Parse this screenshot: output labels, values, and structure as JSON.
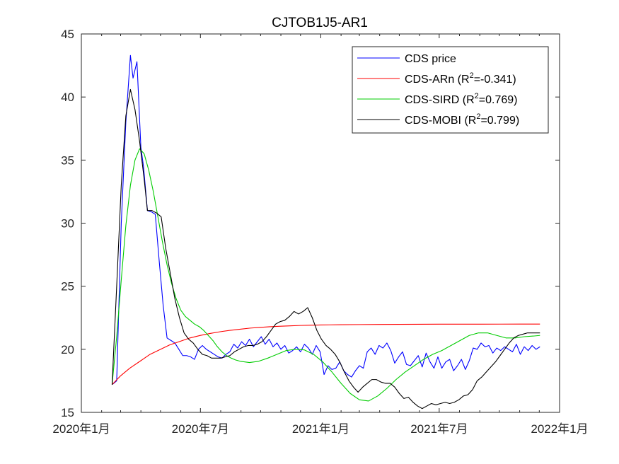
{
  "chart_data": {
    "type": "line",
    "title": "CJTOB1J5-AR1",
    "xlabel": "",
    "ylabel": "",
    "xlim": [
      "2020-01-01",
      "2022-01-01"
    ],
    "ylim": [
      15,
      45
    ],
    "yticks": [
      15,
      20,
      25,
      30,
      35,
      40,
      45
    ],
    "xticks": [
      {
        "date": "2020-01-01",
        "label": "2020年1月"
      },
      {
        "date": "2020-07-01",
        "label": "2020年7月"
      },
      {
        "date": "2021-01-01",
        "label": "2021年1月"
      },
      {
        "date": "2021-07-01",
        "label": "2021年7月"
      },
      {
        "date": "2022-01-01",
        "label": "2022年1月"
      }
    ],
    "grid": false,
    "legend_position": "top-right",
    "series": [
      {
        "name": "CDS price",
        "legend_main": "CDS price",
        "legend_sup": "",
        "legend_tail": "",
        "color": "#0000ff",
        "x": [
          "2020-02-17",
          "2020-02-24",
          "2020-03-02",
          "2020-03-09",
          "2020-03-16",
          "2020-03-20",
          "2020-03-26",
          "2020-04-01",
          "2020-04-05",
          "2020-04-11",
          "2020-04-17",
          "2020-04-23",
          "2020-04-29",
          "2020-05-05",
          "2020-05-11",
          "2020-05-17",
          "2020-05-23",
          "2020-05-29",
          "2020-06-04",
          "2020-06-10",
          "2020-06-16",
          "2020-06-22",
          "2020-06-28",
          "2020-07-04",
          "2020-07-10",
          "2020-07-16",
          "2020-07-22",
          "2020-07-28",
          "2020-08-03",
          "2020-08-09",
          "2020-08-15",
          "2020-08-21",
          "2020-08-27",
          "2020-09-02",
          "2020-09-08",
          "2020-09-14",
          "2020-09-20",
          "2020-09-26",
          "2020-10-02",
          "2020-10-08",
          "2020-10-14",
          "2020-10-20",
          "2020-10-26",
          "2020-11-01",
          "2020-11-07",
          "2020-11-13",
          "2020-11-19",
          "2020-11-25",
          "2020-12-01",
          "2020-12-07",
          "2020-12-13",
          "2020-12-19",
          "2020-12-25",
          "2020-12-31",
          "2021-01-06",
          "2021-01-12",
          "2021-01-18",
          "2021-01-24",
          "2021-01-30",
          "2021-02-05",
          "2021-02-11",
          "2021-02-17",
          "2021-02-23",
          "2021-03-01",
          "2021-03-07",
          "2021-03-13",
          "2021-03-19",
          "2021-03-25",
          "2021-03-31",
          "2021-04-06",
          "2021-04-12",
          "2021-04-18",
          "2021-04-24",
          "2021-04-30",
          "2021-05-06",
          "2021-05-12",
          "2021-05-18",
          "2021-05-24",
          "2021-05-30",
          "2021-06-05",
          "2021-06-11",
          "2021-06-17",
          "2021-06-23",
          "2021-06-29",
          "2021-07-05",
          "2021-07-11",
          "2021-07-17",
          "2021-07-23",
          "2021-07-29",
          "2021-08-04",
          "2021-08-10",
          "2021-08-16",
          "2021-08-22",
          "2021-08-28",
          "2021-09-03",
          "2021-09-09",
          "2021-09-15",
          "2021-09-21",
          "2021-09-27",
          "2021-10-03",
          "2021-10-09",
          "2021-10-15",
          "2021-10-21",
          "2021-10-27",
          "2021-11-02",
          "2021-11-08",
          "2021-11-14",
          "2021-11-20",
          "2021-11-26",
          "2021-12-02"
        ],
        "y": [
          17.2,
          17.5,
          30.0,
          38.0,
          43.3,
          41.5,
          42.8,
          36.0,
          34.5,
          31.0,
          30.9,
          30.7,
          27.0,
          23.5,
          20.9,
          20.7,
          20.5,
          20.0,
          19.5,
          19.5,
          19.4,
          19.2,
          20.0,
          20.3,
          20.0,
          19.8,
          19.6,
          19.4,
          19.3,
          19.6,
          19.8,
          20.4,
          20.1,
          20.6,
          20.3,
          20.8,
          20.2,
          20.6,
          21.0,
          20.4,
          20.8,
          20.2,
          20.5,
          20.0,
          20.3,
          19.7,
          19.9,
          20.2,
          19.8,
          20.4,
          20.1,
          19.6,
          20.3,
          19.8,
          18.0,
          18.7,
          18.4,
          18.5,
          19.0,
          18.3,
          18.0,
          17.8,
          18.3,
          18.7,
          18.5,
          19.8,
          20.1,
          19.6,
          20.3,
          20.1,
          20.5,
          19.9,
          18.9,
          19.4,
          19.8,
          18.8,
          18.7,
          19.1,
          19.5,
          18.6,
          19.7,
          19.0,
          18.5,
          19.4,
          18.5,
          19.0,
          19.2,
          18.3,
          18.7,
          19.2,
          18.4,
          19.1,
          20.1,
          20.0,
          20.5,
          20.2,
          20.3,
          19.7,
          20.1,
          19.9,
          20.2,
          20.0,
          19.8,
          20.4,
          19.6,
          20.2,
          19.9,
          20.3,
          20.0,
          20.2
        ],
        "x_note": ""
      },
      {
        "name": "CDS-ARn",
        "legend_main": "CDS-ARn   (R",
        "legend_sup": "2",
        "legend_tail": "=-0.341)",
        "color": "#ff0000",
        "x": [
          "2020-02-17",
          "2020-03-01",
          "2020-03-15",
          "2020-04-01",
          "2020-04-15",
          "2020-05-01",
          "2020-05-15",
          "2020-06-01",
          "2020-06-15",
          "2020-07-01",
          "2020-07-15",
          "2020-08-01",
          "2020-08-15",
          "2020-09-01",
          "2020-09-15",
          "2020-10-01",
          "2020-10-15",
          "2020-11-01",
          "2020-11-15",
          "2020-12-01",
          "2020-12-15",
          "2021-01-01",
          "2021-01-15",
          "2021-02-01",
          "2021-03-01",
          "2021-04-01",
          "2021-05-01",
          "2021-06-01",
          "2021-07-01",
          "2021-08-01",
          "2021-09-01",
          "2021-10-01",
          "2021-11-01",
          "2021-12-02"
        ],
        "y": [
          17.2,
          17.9,
          18.5,
          19.1,
          19.6,
          20.0,
          20.35,
          20.65,
          20.9,
          21.1,
          21.25,
          21.4,
          21.5,
          21.6,
          21.68,
          21.74,
          21.79,
          21.83,
          21.86,
          21.89,
          21.91,
          21.93,
          21.94,
          21.95,
          21.96,
          21.97,
          21.98,
          21.985,
          21.99,
          21.99,
          21.99,
          21.995,
          22.0,
          22.0
        ]
      },
      {
        "name": "CDS-SIRD",
        "legend_main": "CDS-SIRD (R",
        "legend_sup": "2",
        "legend_tail": "=0.769)",
        "color": "#00cc00",
        "x": [
          "2020-02-17",
          "2020-02-24",
          "2020-03-02",
          "2020-03-09",
          "2020-03-16",
          "2020-03-23",
          "2020-03-30",
          "2020-04-06",
          "2020-04-13",
          "2020-04-20",
          "2020-04-27",
          "2020-05-04",
          "2020-05-11",
          "2020-05-18",
          "2020-05-25",
          "2020-06-01",
          "2020-06-08",
          "2020-06-15",
          "2020-06-22",
          "2020-06-29",
          "2020-07-06",
          "2020-07-13",
          "2020-07-20",
          "2020-07-27",
          "2020-08-03",
          "2020-08-10",
          "2020-08-17",
          "2020-08-24",
          "2020-08-31",
          "2020-09-14",
          "2020-09-28",
          "2020-10-12",
          "2020-10-26",
          "2020-11-09",
          "2020-11-23",
          "2020-12-07",
          "2020-12-21",
          "2021-01-04",
          "2021-01-18",
          "2021-02-01",
          "2021-02-15",
          "2021-03-01",
          "2021-03-15",
          "2021-03-29",
          "2021-04-12",
          "2021-04-26",
          "2021-05-10",
          "2021-05-24",
          "2021-06-07",
          "2021-06-21",
          "2021-07-05",
          "2021-07-19",
          "2021-08-02",
          "2021-08-16",
          "2021-08-30",
          "2021-09-13",
          "2021-09-27",
          "2021-10-11",
          "2021-10-25",
          "2021-11-08",
          "2021-11-22",
          "2021-12-02"
        ],
        "y": [
          17.2,
          21.0,
          25.5,
          29.8,
          33.0,
          35.0,
          35.9,
          35.5,
          34.2,
          32.5,
          30.5,
          28.5,
          26.7,
          25.2,
          24.0,
          23.1,
          22.6,
          22.3,
          22.0,
          21.8,
          21.5,
          21.1,
          20.7,
          20.2,
          19.8,
          19.5,
          19.3,
          19.15,
          19.05,
          18.95,
          19.05,
          19.3,
          19.6,
          19.9,
          20.0,
          19.95,
          19.6,
          19.0,
          18.2,
          17.3,
          16.5,
          16.0,
          15.9,
          16.3,
          16.9,
          17.6,
          18.2,
          18.7,
          19.2,
          19.6,
          19.9,
          20.3,
          20.7,
          21.1,
          21.3,
          21.3,
          21.1,
          20.9,
          20.9,
          21.0,
          21.05,
          21.1
        ]
      },
      {
        "name": "CDS-MOBI",
        "legend_main": "CDS-MOBI (R",
        "legend_sup": "2",
        "legend_tail": "=0.799)",
        "color": "#000000",
        "x": [
          "2020-02-17",
          "2020-02-24",
          "2020-03-02",
          "2020-03-09",
          "2020-03-16",
          "2020-03-23",
          "2020-03-30",
          "2020-04-06",
          "2020-04-11",
          "2020-04-18",
          "2020-04-25",
          "2020-05-02",
          "2020-05-09",
          "2020-05-16",
          "2020-05-23",
          "2020-05-30",
          "2020-06-06",
          "2020-06-13",
          "2020-06-20",
          "2020-06-27",
          "2020-07-04",
          "2020-07-11",
          "2020-07-18",
          "2020-07-25",
          "2020-08-01",
          "2020-08-08",
          "2020-08-15",
          "2020-08-22",
          "2020-08-29",
          "2020-09-05",
          "2020-09-12",
          "2020-09-19",
          "2020-09-26",
          "2020-10-03",
          "2020-10-10",
          "2020-10-17",
          "2020-10-24",
          "2020-10-31",
          "2020-11-07",
          "2020-11-14",
          "2020-11-21",
          "2020-11-28",
          "2020-12-05",
          "2020-12-12",
          "2020-12-19",
          "2020-12-26",
          "2021-01-02",
          "2021-01-09",
          "2021-01-16",
          "2021-01-23",
          "2021-01-30",
          "2021-02-06",
          "2021-02-13",
          "2021-02-20",
          "2021-02-27",
          "2021-03-06",
          "2021-03-13",
          "2021-03-20",
          "2021-03-27",
          "2021-04-03",
          "2021-04-10",
          "2021-04-17",
          "2021-04-24",
          "2021-05-01",
          "2021-05-08",
          "2021-05-15",
          "2021-05-22",
          "2021-05-29",
          "2021-06-05",
          "2021-06-12",
          "2021-06-19",
          "2021-06-26",
          "2021-07-03",
          "2021-07-10",
          "2021-07-17",
          "2021-07-24",
          "2021-07-31",
          "2021-08-07",
          "2021-08-14",
          "2021-08-21",
          "2021-08-28",
          "2021-09-04",
          "2021-09-11",
          "2021-09-18",
          "2021-09-25",
          "2021-10-02",
          "2021-10-09",
          "2021-10-16",
          "2021-10-23",
          "2021-10-30",
          "2021-11-06",
          "2021-11-13",
          "2021-11-20",
          "2021-11-27",
          "2021-12-02"
        ],
        "y": [
          17.2,
          25.0,
          33.0,
          38.5,
          40.6,
          39.0,
          36.5,
          33.5,
          31.0,
          31.0,
          30.8,
          30.5,
          28.0,
          26.0,
          24.0,
          22.5,
          21.3,
          20.8,
          20.5,
          20.0,
          19.6,
          19.5,
          19.3,
          19.3,
          19.3,
          19.4,
          19.5,
          19.8,
          20.0,
          20.2,
          20.3,
          20.3,
          20.4,
          20.6,
          21.0,
          21.5,
          22.0,
          22.2,
          22.3,
          22.6,
          23.0,
          22.8,
          23.0,
          23.3,
          22.5,
          21.5,
          20.8,
          20.3,
          20.0,
          19.6,
          19.0,
          18.2,
          17.5,
          17.0,
          16.6,
          17.0,
          17.3,
          17.6,
          17.6,
          17.4,
          17.3,
          17.3,
          17.0,
          16.5,
          16.1,
          16.2,
          15.8,
          15.5,
          15.3,
          15.5,
          15.7,
          15.6,
          15.7,
          15.8,
          15.7,
          15.8,
          16.0,
          16.3,
          16.4,
          16.8,
          17.5,
          17.8,
          18.2,
          18.6,
          19.0,
          19.5,
          20.0,
          20.5,
          20.9,
          21.1,
          21.2,
          21.3,
          21.3,
          21.3,
          21.3
        ]
      }
    ]
  }
}
